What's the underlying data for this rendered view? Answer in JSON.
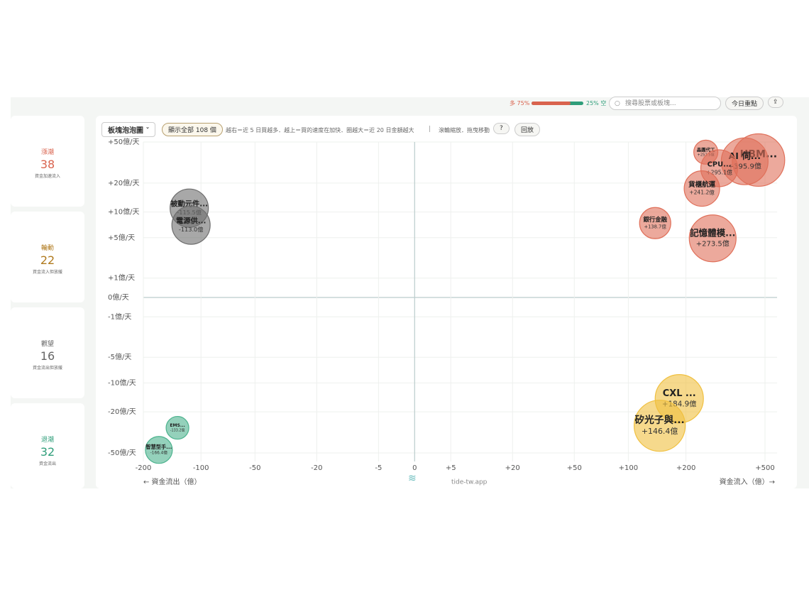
{
  "header": {
    "bull": {
      "label": "多 75%",
      "value": 75
    },
    "bear": {
      "label": "25% 空",
      "value": 25
    },
    "search_placeholder": "搜尋股票或板塊...",
    "today_button": "今日重點"
  },
  "sidebar": [
    {
      "title": "漲潮",
      "count": 38,
      "desc": "資金加速流入",
      "color": "#d9634e"
    },
    {
      "title": "輪動",
      "count": 22,
      "desc": "資金流入但放緩",
      "color": "#b07a1e"
    },
    {
      "title": "觀望",
      "count": 16,
      "desc": "資金流出但放緩",
      "color": "#666666"
    },
    {
      "title": "退潮",
      "count": 32,
      "desc": "資金流出",
      "color": "#2f9e7a"
    }
  ],
  "toolbar": {
    "view": "板塊泡泡圖",
    "show_all": "顯示全部 108 個",
    "hint": "越右＝近 5 日買越多．越上＝買的速度在加快．圈越大＝近 20 日金額越大",
    "separator": "|",
    "zoom_hint": "滾輪縮放．拖曳移動",
    "help": "?",
    "replay": "回放"
  },
  "watermark": "tide-tw.app",
  "chart_data": {
    "type": "bubble",
    "xscale": "symlog",
    "yscale": "symlog",
    "x_left_label": "← 資金流出（億）",
    "x_right_label": "資金流入（億）→",
    "labels": [
      "晶圓代工",
      "HBM...",
      "AI 伺...",
      "CPU...",
      "貨櫃航運",
      "銀行金融",
      "記憶體模...",
      "被動元件...",
      "電源供...",
      "CXL ...",
      "矽光子與...",
      "EMS...",
      "智慧型手..."
    ],
    "x": [
      252.5,
      464,
      395.9,
      295.1,
      241.2,
      138.7,
      273.5,
      -115.5,
      -113.0,
      184.9,
      146.4,
      -133.2,
      -166.4
    ],
    "y": [
      40,
      33.6,
      32.7,
      28,
      17.6,
      7.5,
      4.9,
      11,
      7.1,
      -14.7,
      -27.4,
      -28.7,
      -46.8
    ],
    "sizes": [
      72,
      342,
      272,
      169,
      156,
      121,
      272,
      182,
      182,
      289,
      324,
      64,
      90
    ],
    "value_labels": [
      "+252.5億",
      null,
      "+395.9億",
      "+295.1億",
      "+241.2億",
      "+138.7億",
      "+273.5億",
      "-115.5億",
      "-113.0億",
      "+184.9億",
      "+146.4億",
      "-133.2億",
      "-166.4億"
    ],
    "colors": [
      "#e0705a",
      "#e0705a",
      "#e0705a",
      "#e0705a",
      "#e0705a",
      "#e0705a",
      "#e0705a",
      "#6e6e6e",
      "#6e6e6e",
      "#f0c040",
      "#f0c040",
      "#4cb38e",
      "#4cb38e"
    ],
    "xlim": [
      -200,
      500
    ],
    "ylim": [
      -50,
      50
    ],
    "xticks": [
      -200,
      -100,
      -50,
      -20,
      -5,
      0,
      {
        "value": 5,
        "label": "+5"
      },
      {
        "value": 20,
        "label": "+20"
      },
      {
        "value": 50,
        "label": "+50"
      },
      {
        "value": 100,
        "label": "+100"
      },
      {
        "value": 200,
        "label": "+200"
      },
      {
        "value": 500,
        "label": "+500"
      }
    ],
    "yticks": [
      {
        "value": 50,
        "label": "+50億/天"
      },
      {
        "value": 20,
        "label": "+20億/天"
      },
      {
        "value": 10,
        "label": "+10億/天"
      },
      {
        "value": 5,
        "label": "+5億/天"
      },
      {
        "value": 1,
        "label": "+1億/天"
      },
      {
        "value": 0,
        "label": "0億/天"
      },
      {
        "value": -1,
        "label": "-1億/天"
      },
      {
        "value": -5,
        "label": "-5億/天"
      },
      {
        "value": -10,
        "label": "-10億/天"
      },
      {
        "value": -20,
        "label": "-20億/天"
      },
      {
        "value": -50,
        "label": "-50億/天"
      }
    ],
    "grid": true
  }
}
